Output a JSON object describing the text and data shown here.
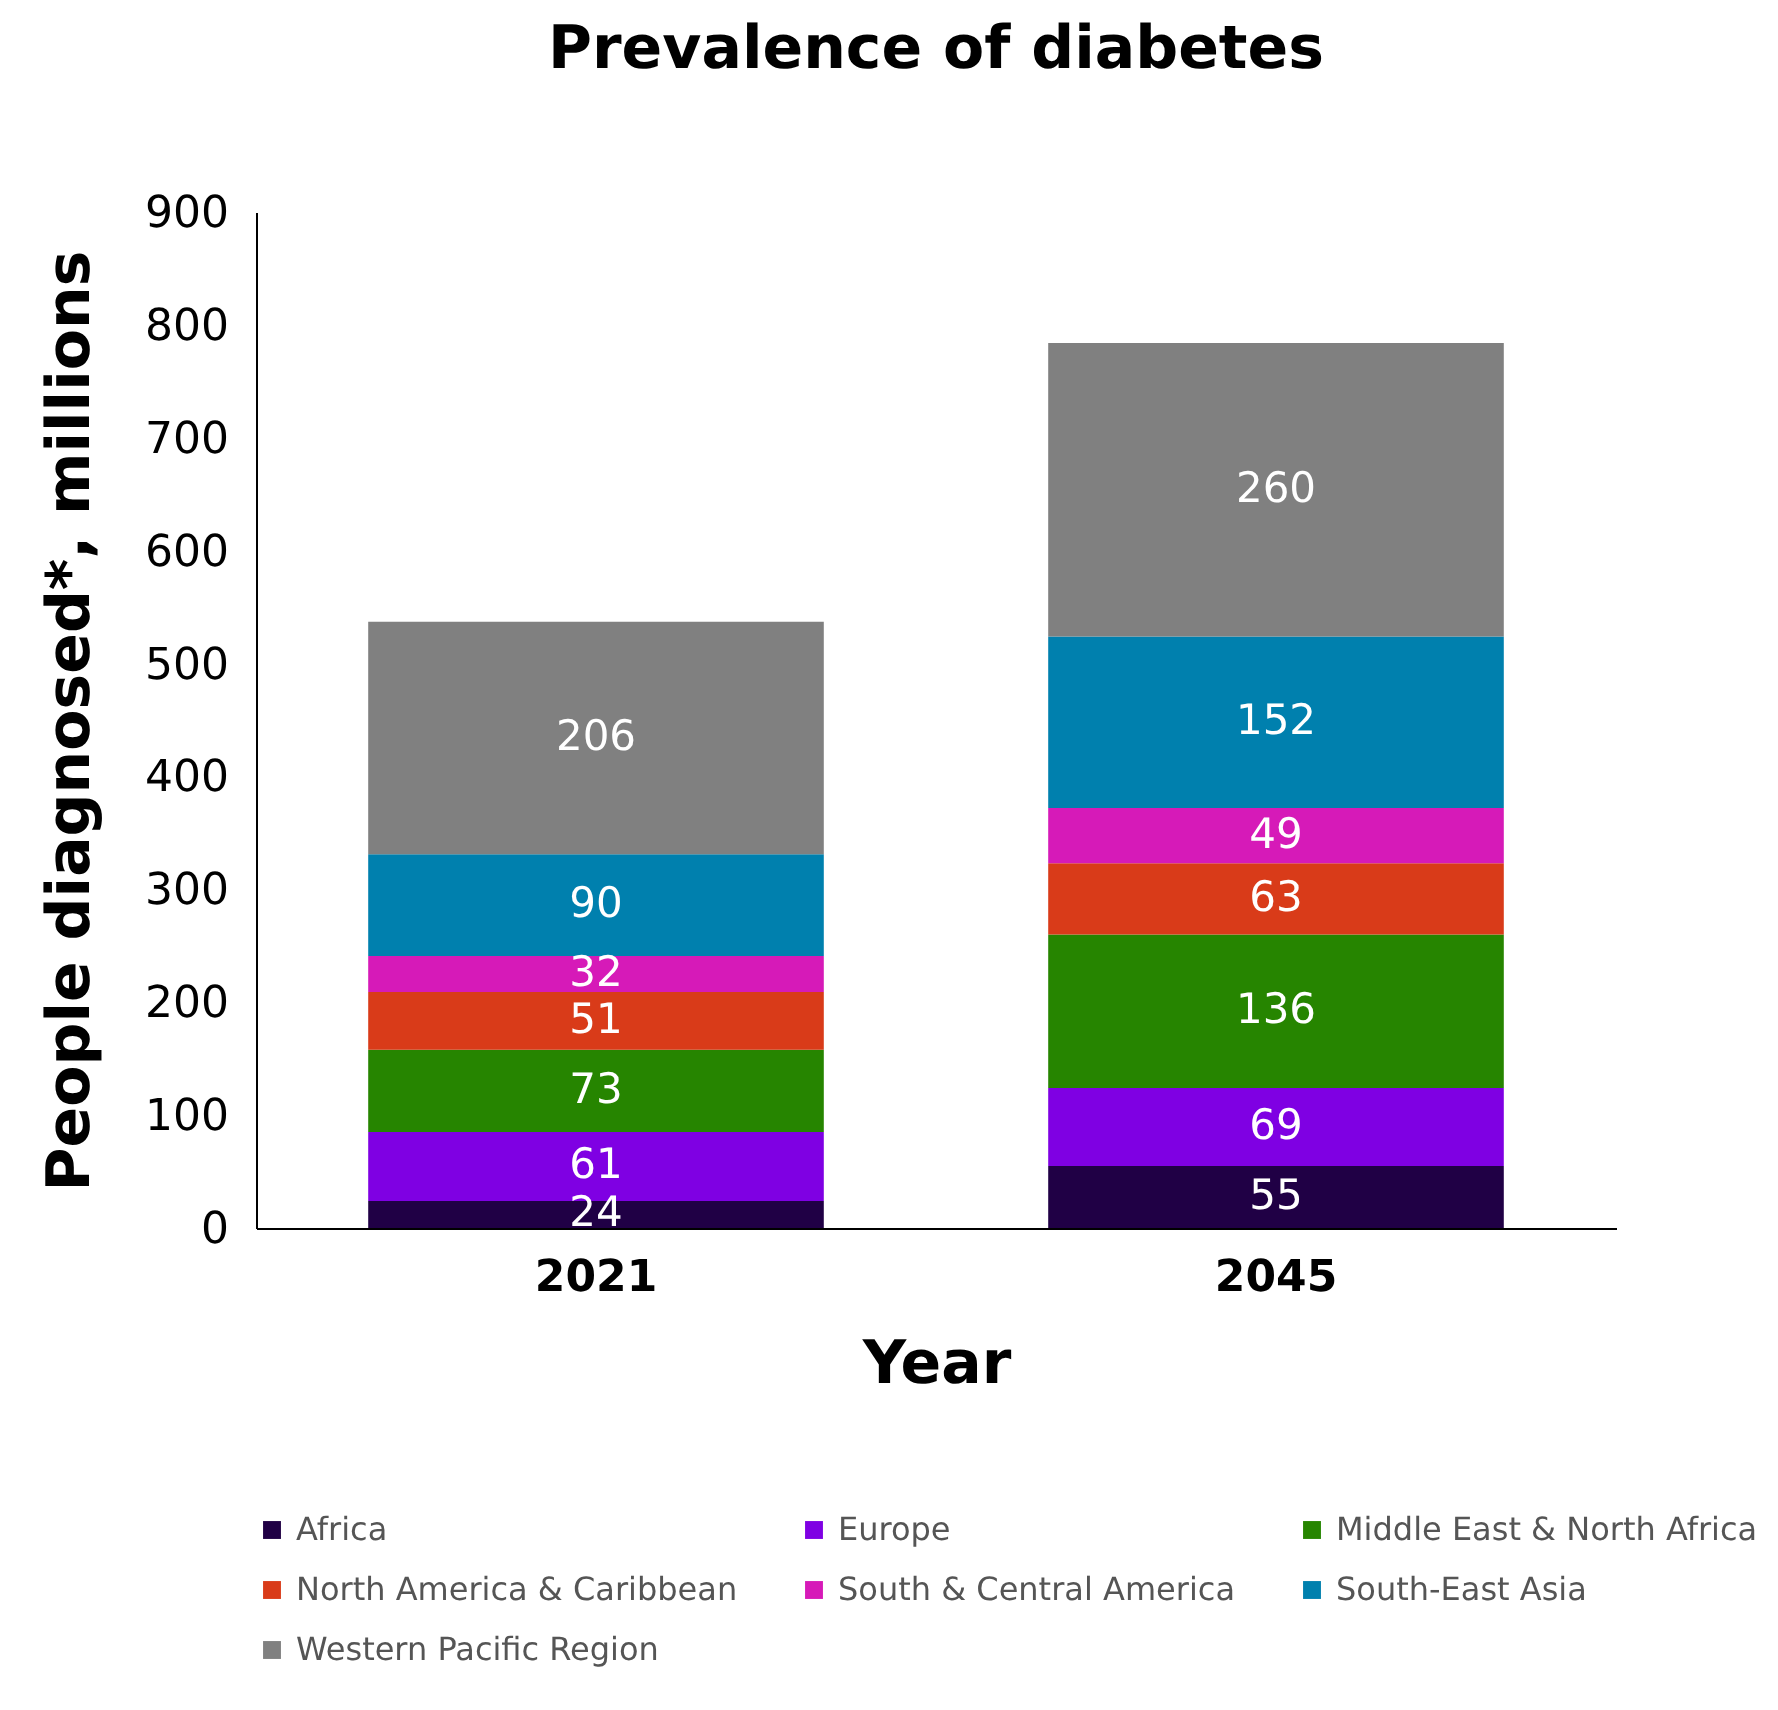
{
  "chart_data": {
    "type": "bar",
    "title": "Prevalence of diabetes",
    "xlabel": "Year",
    "ylabel": "People diagnosed*, millions",
    "categories": [
      "2021",
      "2045"
    ],
    "stacked": true,
    "data_labels": true,
    "legend": "bottom",
    "grid": false,
    "ylim": [
      0,
      900
    ],
    "yticks": [
      0,
      100,
      200,
      300,
      400,
      500,
      600,
      700,
      800,
      900
    ],
    "series": [
      {
        "name": "Africa",
        "color": "#200045",
        "values": [
          24,
          55
        ]
      },
      {
        "name": "Europe",
        "color": "#7f00e3",
        "values": [
          61,
          69
        ]
      },
      {
        "name": "Middle East & North Africa",
        "color": "#268500",
        "values": [
          73,
          136
        ]
      },
      {
        "name": "North America & Caribbean",
        "color": "#d93b19",
        "values": [
          51,
          63
        ]
      },
      {
        "name": "South & Central America",
        "color": "#d61ab8",
        "values": [
          32,
          49
        ]
      },
      {
        "name": "South-East Asia",
        "color": "#0080ae",
        "values": [
          90,
          152
        ]
      },
      {
        "name": "Western Pacific Region",
        "color": "#808080",
        "values": [
          206,
          260
        ]
      }
    ]
  }
}
